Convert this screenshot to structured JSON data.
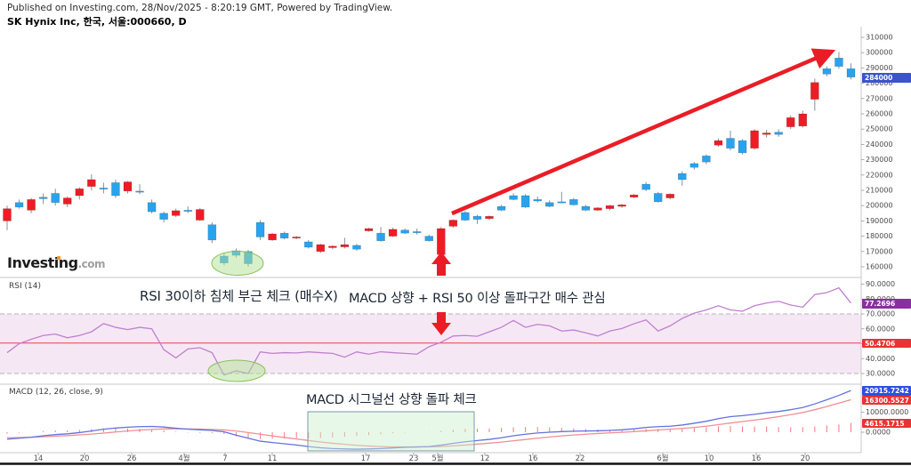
{
  "header": {
    "published_line": "Published on Investing.com, 28/Nov/2025 - 8:20:19 GMT, Powered by TradingView.",
    "instrument_line": "SK Hynix Inc, 한국, 서울:000660, D"
  },
  "watermark": {
    "brand": "Investing",
    "domain": ".com"
  },
  "panes": {
    "rsi_label": "RSI (14)",
    "macd_label": "MACD (12, 26, close, 9)"
  },
  "annotations": {
    "rsi_note": "RSI 30이하 침체 부근 체크 (매수X)",
    "buy_note": "MACD 상향 + RSI 50 이상 돌파구간 매수 관심",
    "macd_note": "MACD 시그널선 상향 돌파 체크"
  },
  "axis_badges": {
    "price": "284000",
    "rsi": "77.2696",
    "rsi_mid": "50.4706",
    "macd": "20915.7242",
    "macd_signal": "16300.5527",
    "macd_hist": "4615.1715"
  },
  "colors": {
    "candle_up": "#ee1c25",
    "candle_down": "#29a3ee",
    "wick": "#8a9099",
    "rsi_line": "#c17fd0",
    "rsi_mid_line": "#f43b47",
    "rsi_band_fill": "#f5e8f4",
    "macd_line": "#6272e0",
    "signal_line": "#ef8f95",
    "histogram": "#f2797d",
    "highlight_green_stroke": "#8bbf5a",
    "highlight_green_fill": "rgba(177,226,150,0.5)",
    "highlight_box_fill": "rgba(205,240,205,0.45)",
    "highlight_box_stroke": "#7d97ad",
    "arrow_red": "#ea1d26",
    "badge_price": "#3b54cc",
    "badge_rsi": "#8b2fa0",
    "badge_red": "#e93333",
    "badge_macd": "#2b50df",
    "separator": "#c9c9c9",
    "axis_text": "#4a4a4a"
  },
  "chart_data": [
    {
      "type": "candlestick",
      "title": "SK Hynix Inc (서울:000660), Daily",
      "last_close": 284000,
      "ylim": [
        160000,
        310000
      ],
      "y_ticks": [
        310000,
        300000,
        290000,
        280000,
        270000,
        260000,
        250000,
        240000,
        230000,
        220000,
        210000,
        200000,
        190000,
        180000,
        170000,
        160000
      ],
      "x_ticks": [
        [
          "14",
          43
        ],
        [
          "20",
          95
        ],
        [
          "26",
          148
        ],
        [
          "4월",
          207
        ],
        [
          "7",
          253
        ],
        [
          "11",
          306
        ],
        [
          "17",
          411
        ],
        [
          "23",
          465
        ],
        [
          "5월",
          492
        ],
        [
          "12",
          545
        ],
        [
          "16",
          599
        ],
        [
          "22",
          652
        ],
        [
          "6월",
          745
        ],
        [
          "10",
          797
        ],
        [
          "16",
          850
        ],
        [
          "20",
          905
        ]
      ],
      "candles": [
        [
          190000,
          200000,
          184000,
          198000
        ],
        [
          202000,
          204000,
          198000,
          199000
        ],
        [
          197000,
          205000,
          195000,
          204000
        ],
        [
          205500,
          208000,
          201000,
          204500
        ],
        [
          208000,
          211000,
          200000,
          202000
        ],
        [
          201000,
          206000,
          199000,
          205000
        ],
        [
          206500,
          212000,
          204000,
          211000
        ],
        [
          212500,
          220500,
          210000,
          217000
        ],
        [
          211500,
          215000,
          208000,
          211000
        ],
        [
          215000,
          217000,
          205000,
          206500
        ],
        [
          209500,
          216000,
          208000,
          215500
        ],
        [
          209500,
          214000,
          207500,
          209000
        ],
        [
          202000,
          204000,
          195000,
          196000
        ],
        [
          195000,
          196000,
          189000,
          191000
        ],
        [
          193500,
          198000,
          192500,
          196700
        ],
        [
          197000,
          199500,
          195000,
          196500
        ],
        [
          190500,
          198500,
          190000,
          197500
        ],
        [
          187500,
          189000,
          175500,
          177500
        ],
        [
          167000,
          169000,
          161000,
          162500
        ],
        [
          170500,
          172000,
          166000,
          167500
        ],
        [
          170000,
          171000,
          160000,
          162000
        ],
        [
          189000,
          190500,
          177500,
          179500
        ],
        [
          177500,
          182000,
          177000,
          181500
        ],
        [
          182000,
          183000,
          178000,
          178700
        ],
        [
          178800,
          180000,
          178000,
          179500
        ],
        [
          176300,
          177500,
          172000,
          172800
        ],
        [
          170000,
          175000,
          169000,
          174500
        ],
        [
          172500,
          174000,
          171500,
          173500
        ],
        [
          173000,
          179000,
          172000,
          174500
        ],
        [
          174000,
          175000,
          170500,
          171500
        ],
        [
          183500,
          185500,
          183000,
          185000
        ],
        [
          182000,
          186000,
          176500,
          177000
        ],
        [
          180000,
          185500,
          179500,
          184500
        ],
        [
          184000,
          185000,
          181500,
          182000
        ],
        [
          183000,
          185000,
          181000,
          182500
        ],
        [
          180000,
          181000,
          176500,
          177000
        ],
        [
          168000,
          186000,
          167000,
          185000
        ],
        [
          186500,
          191000,
          185500,
          190500
        ],
        [
          195500,
          196500,
          190000,
          190500
        ],
        [
          193000,
          194000,
          188000,
          191000
        ],
        [
          191500,
          193500,
          190500,
          193000
        ],
        [
          199500,
          200500,
          196500,
          197000
        ],
        [
          206500,
          208000,
          203500,
          204000
        ],
        [
          206500,
          207500,
          198500,
          199000
        ],
        [
          204000,
          206000,
          202000,
          203000
        ],
        [
          202000,
          203500,
          199000,
          199500
        ],
        [
          202500,
          209000,
          201500,
          202000
        ],
        [
          204000,
          205000,
          200000,
          200500
        ],
        [
          199500,
          200500,
          196500,
          197000
        ],
        [
          197000,
          199000,
          196500,
          198500
        ],
        [
          198000,
          200500,
          197000,
          200000
        ],
        [
          199500,
          201000,
          198500,
          200500
        ],
        [
          205500,
          207500,
          205000,
          207000
        ],
        [
          214000,
          215500,
          209500,
          210500
        ],
        [
          208000,
          209000,
          202000,
          202500
        ],
        [
          205000,
          208000,
          204000,
          207500
        ],
        [
          221000,
          222500,
          213000,
          217000
        ],
        [
          227500,
          228500,
          223500,
          225000
        ],
        [
          232500,
          233500,
          227000,
          228500
        ],
        [
          239500,
          244000,
          238500,
          242500
        ],
        [
          244000,
          249000,
          236000,
          237500
        ],
        [
          242500,
          243500,
          233500,
          234500
        ],
        [
          237500,
          250000,
          236500,
          249000
        ],
        [
          246500,
          249500,
          244500,
          247500
        ],
        [
          248000,
          250000,
          245000,
          246500
        ],
        [
          251500,
          259000,
          250000,
          257500
        ],
        [
          252000,
          262000,
          251000,
          260000
        ],
        [
          269500,
          283000,
          262000,
          280500
        ],
        [
          289500,
          291000,
          284500,
          286000
        ],
        [
          296500,
          300500,
          289500,
          291000
        ],
        [
          289500,
          293000,
          282500,
          284000
        ]
      ]
    },
    {
      "type": "line",
      "name": "RSI (14)",
      "last": 77.2696,
      "midline": 50.4706,
      "overbought": 70,
      "oversold": 30,
      "ylim": [
        25,
        92
      ],
      "y_ticks": [
        90,
        80,
        70,
        60,
        50,
        40,
        30
      ],
      "values": [
        44,
        50,
        53,
        55.5,
        56.5,
        54,
        55.5,
        58,
        63.5,
        61,
        59.5,
        61,
        60,
        46,
        40.5,
        46.5,
        47.3,
        44,
        29,
        31.8,
        30,
        44.5,
        43.5,
        44,
        43.8,
        44.5,
        44,
        43.5,
        41,
        44.5,
        43,
        44.6,
        44,
        43.5,
        43,
        48,
        51,
        55.2,
        55.5,
        55,
        58,
        61,
        65.6,
        61,
        63,
        62,
        58.5,
        59.2,
        57.3,
        55.2,
        58.5,
        60.2,
        63.4,
        66,
        58.5,
        62,
        67,
        70.5,
        72.7,
        75.5,
        72.7,
        71.8,
        75.5,
        77.3,
        78.5,
        76,
        74.5,
        83,
        84.3,
        87.5,
        77.27
      ]
    },
    {
      "type": "line",
      "name": "MACD (12, 26, close, 9)",
      "y_ticks": [
        10000,
        0
      ],
      "last": {
        "macd": 20915.7242,
        "signal": 16300.5527,
        "histogram": 4615.1715
      },
      "histogram_note": "histogram = MACD - Signal",
      "series": [
        {
          "name": "MACD",
          "values": [
            -3500,
            -3000,
            -2500,
            -1800,
            -1200,
            -800,
            -200,
            600,
            1500,
            2100,
            2500,
            2800,
            2900,
            2600,
            2000,
            1500,
            1200,
            900,
            200,
            -1500,
            -3000,
            -4500,
            -5200,
            -5800,
            -6400,
            -7200,
            -7800,
            -8200,
            -8400,
            -8500,
            -8400,
            -8200,
            -7900,
            -7600,
            -7400,
            -7200,
            -6500,
            -5600,
            -4800,
            -4200,
            -3600,
            -2800,
            -1800,
            -1000,
            -400,
            0,
            300,
            500,
            600,
            700,
            900,
            1200,
            1700,
            2400,
            2800,
            3000,
            3600,
            4500,
            5500,
            6800,
            7800,
            8300,
            9000,
            9800,
            10400,
            11300,
            12400,
            14200,
            16300,
            18500,
            20915.7242
          ]
        },
        {
          "name": "Signal",
          "values": [
            -2800,
            -2700,
            -2550,
            -2300,
            -2000,
            -1700,
            -1350,
            -950,
            -450,
            100,
            600,
            1050,
            1400,
            1650,
            1700,
            1650,
            1550,
            1400,
            1150,
            600,
            -150,
            -1000,
            -1850,
            -2650,
            -3400,
            -4150,
            -4900,
            -5550,
            -6100,
            -6600,
            -6950,
            -7200,
            -7350,
            -7400,
            -7400,
            -7350,
            -7200,
            -6850,
            -6450,
            -6000,
            -5500,
            -4950,
            -4300,
            -3650,
            -3000,
            -2400,
            -1850,
            -1400,
            -1000,
            -650,
            -350,
            -50,
            300,
            700,
            1100,
            1500,
            1900,
            2400,
            3000,
            3800,
            4600,
            5350,
            6100,
            6900,
            7800,
            8800,
            9900,
            11300,
            12900,
            14600,
            16300.5527
          ]
        }
      ]
    }
  ]
}
